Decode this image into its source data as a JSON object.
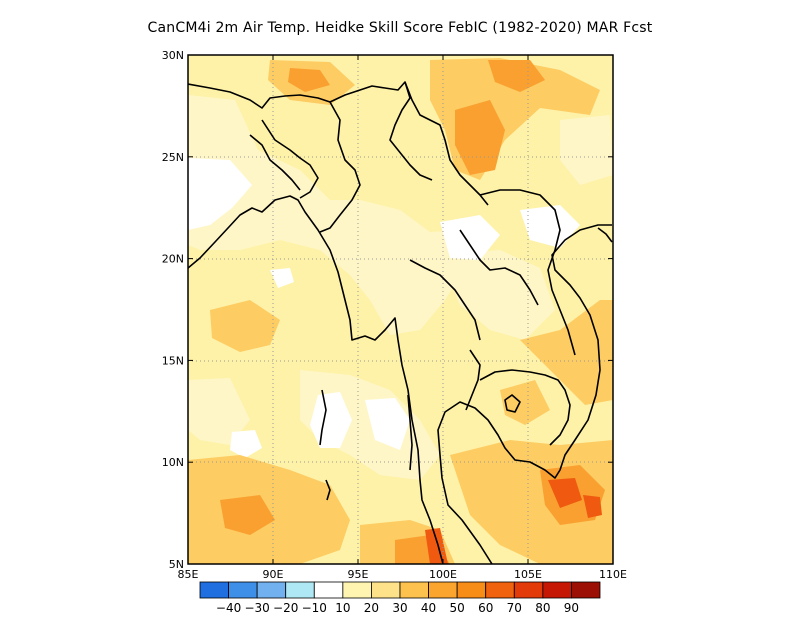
{
  "title": "CanCM4i  2m Air Temp. Heidke Skill Score FebIC (1982-2020) MAR Fcst",
  "map": {
    "lon_range": [
      85,
      110
    ],
    "lat_range": [
      5,
      30
    ],
    "x_ticks": [
      {
        "value": 85,
        "label": "85E"
      },
      {
        "value": 90,
        "label": "90E"
      },
      {
        "value": 95,
        "label": "95E"
      },
      {
        "value": 100,
        "label": "100E"
      },
      {
        "value": 105,
        "label": "105E"
      },
      {
        "value": 110,
        "label": "110E"
      }
    ],
    "y_ticks": [
      {
        "value": 5,
        "label": "5N"
      },
      {
        "value": 10,
        "label": "10N"
      },
      {
        "value": 15,
        "label": "15N"
      },
      {
        "value": 20,
        "label": "20N"
      },
      {
        "value": 25,
        "label": "25N"
      },
      {
        "value": 30,
        "label": "30N"
      }
    ],
    "grid_lines": "dotted",
    "background_color": "#fef2a8"
  },
  "colorbar": {
    "bins": [
      {
        "color": "#1f6fe0"
      },
      {
        "color": "#3d8fe8"
      },
      {
        "color": "#72b1f0"
      },
      {
        "color": "#aee8f4"
      },
      {
        "color": "#ffffff"
      },
      {
        "color": "#fff5b0"
      },
      {
        "color": "#fee28a"
      },
      {
        "color": "#fdc24d"
      },
      {
        "color": "#fba52e"
      },
      {
        "color": "#f78d16"
      },
      {
        "color": "#f0620e"
      },
      {
        "color": "#e33a0a"
      },
      {
        "color": "#c61705"
      },
      {
        "color": "#9b0f04"
      }
    ],
    "labels": [
      "-40",
      "-30",
      "-20",
      "-10",
      "10",
      "20",
      "30",
      "40",
      "50",
      "60",
      "70",
      "80",
      "90"
    ]
  }
}
